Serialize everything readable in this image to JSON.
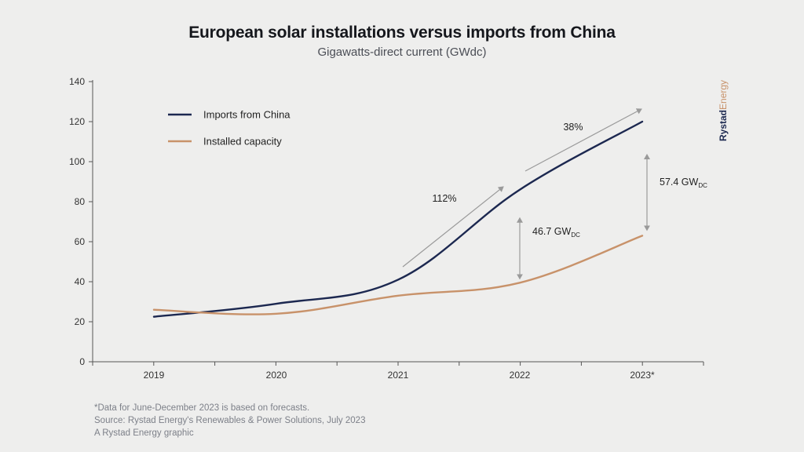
{
  "header": {
    "title": "European solar installations versus imports from China",
    "subtitle": "Gigawatts-direct current (GWdc)"
  },
  "brand": {
    "part1": "Rystad",
    "part2": "Energy"
  },
  "footnotes": [
    "*Data for June-December 2023 is based on forecasts.",
    "Source: Rystad Energy's Renewables & Power Solutions, July 2023",
    "A Rystad Energy graphic"
  ],
  "colors": {
    "imports": "#1c2850",
    "installed": "#c8926a",
    "axis": "#555555",
    "arrow": "#9a9a9a",
    "brand1": "#1c2850",
    "brand2": "#c8926a"
  },
  "chart_data": {
    "type": "line",
    "title": "European solar installations versus imports from China",
    "subtitle": "Gigawatts-direct current (GWdc)",
    "xlabel": "",
    "ylabel": "",
    "categories": [
      "2019",
      "2020",
      "2021",
      "2022",
      "2023*"
    ],
    "ylim": [
      0,
      140
    ],
    "yticks": [
      0,
      20,
      40,
      60,
      80,
      100,
      120,
      140
    ],
    "grid": false,
    "legend_position": "top-left",
    "series": [
      {
        "name": "Imports from China",
        "values": [
          22.5,
          29,
          41,
          86,
          120
        ],
        "color": "#1c2850"
      },
      {
        "name": "Installed capacity",
        "values": [
          26,
          24,
          33,
          39.5,
          63
        ],
        "color": "#c8926a"
      }
    ],
    "annotations": [
      {
        "text": "112%",
        "kind": "growth"
      },
      {
        "text": "38%",
        "kind": "growth"
      },
      {
        "text": "46.7 GW",
        "sub": "DC",
        "kind": "gap",
        "year": "2022"
      },
      {
        "text": "57.4 GW",
        "sub": "DC",
        "kind": "gap",
        "year": "2023*"
      }
    ]
  }
}
